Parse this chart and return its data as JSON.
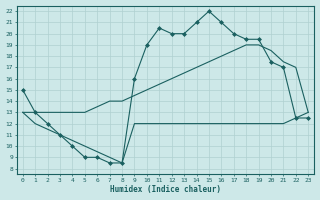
{
  "xlabel": "Humidex (Indice chaleur)",
  "bg_color": "#cde8e8",
  "grid_color": "#b0d0d0",
  "line_color": "#1a6060",
  "xlim": [
    -0.5,
    23.5
  ],
  "ylim": [
    7.5,
    22.5
  ],
  "xticks": [
    0,
    1,
    2,
    3,
    4,
    5,
    6,
    7,
    8,
    9,
    10,
    11,
    12,
    13,
    14,
    15,
    16,
    17,
    18,
    19,
    20,
    21,
    22,
    23
  ],
  "yticks": [
    8,
    9,
    10,
    11,
    12,
    13,
    14,
    15,
    16,
    17,
    18,
    19,
    20,
    21,
    22
  ],
  "line_jagged_x": [
    0,
    1,
    2,
    3,
    4,
    5,
    6,
    7,
    8,
    9,
    10,
    11,
    12,
    13,
    14,
    15,
    16,
    17,
    18,
    19,
    20,
    21,
    22,
    23
  ],
  "line_jagged_y": [
    15,
    13,
    12,
    11,
    10,
    9,
    9,
    8.5,
    8.5,
    16,
    19,
    20.5,
    20,
    20,
    21,
    22,
    21,
    20,
    19.5,
    19.5,
    17.5,
    17,
    12.5,
    12.5
  ],
  "line_upper_x": [
    0,
    1,
    2,
    3,
    4,
    5,
    6,
    7,
    8,
    9,
    10,
    11,
    12,
    13,
    14,
    15,
    16,
    17,
    18,
    19,
    20,
    21,
    22,
    23
  ],
  "line_upper_y": [
    13,
    13,
    13,
    13,
    13,
    13,
    13.5,
    14,
    14,
    14.5,
    15,
    15.5,
    16,
    16.5,
    17,
    17.5,
    18,
    18.5,
    19,
    19,
    18.5,
    17.5,
    17,
    13
  ],
  "line_lower_x": [
    0,
    1,
    2,
    3,
    4,
    5,
    6,
    7,
    8,
    9,
    10,
    11,
    12,
    13,
    14,
    15,
    16,
    17,
    18,
    19,
    20,
    21,
    22,
    23
  ],
  "line_lower_y": [
    13,
    12,
    11.5,
    11,
    10.5,
    10,
    9.5,
    9,
    8.5,
    12,
    12,
    12,
    12,
    12,
    12,
    12,
    12,
    12,
    12,
    12,
    12,
    12,
    12.5,
    13
  ]
}
